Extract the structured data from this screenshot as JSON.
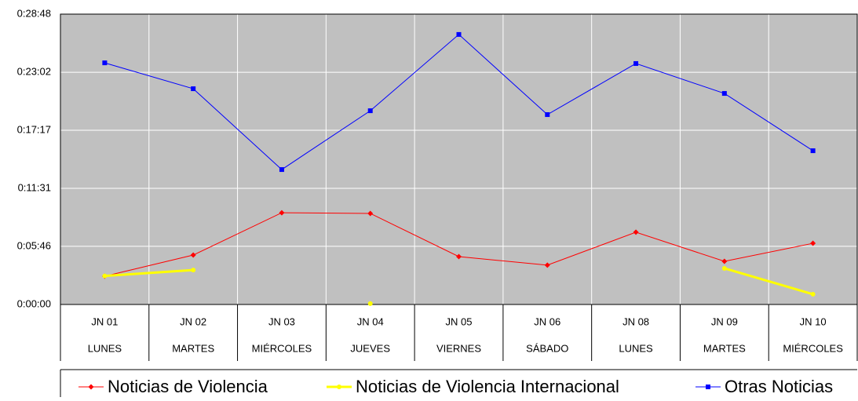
{
  "chart_data": {
    "type": "line",
    "categories": [
      [
        "JN 01",
        "LUNES"
      ],
      [
        "JN 02",
        "MARTES"
      ],
      [
        "JN 03",
        "MIÉRCOLES"
      ],
      [
        "JN 04",
        "JUEVES"
      ],
      [
        "JN 05",
        "VIERNES"
      ],
      [
        "JN 06",
        "SÁBADO"
      ],
      [
        "JN 08",
        "LUNES"
      ],
      [
        "JN 09",
        "MARTES"
      ],
      [
        "JN 10",
        "MIÉRCOLES"
      ]
    ],
    "series": [
      {
        "name": "Noticias de Violencia",
        "color": "#ff0000",
        "marker": "diamond",
        "values": [
          168,
          294,
          546,
          542,
          285,
          234,
          430,
          257,
          364
        ]
      },
      {
        "name": "Noticias de Violencia Internacional",
        "color": "#ffff00",
        "marker": "circle",
        "values": [
          170,
          205,
          null,
          5,
          null,
          null,
          null,
          215,
          61
        ]
      },
      {
        "name": "Otras Noticias",
        "color": "#0000ff",
        "marker": "square",
        "values": [
          1438,
          1284,
          803,
          1153,
          1607,
          1130,
          1434,
          1256,
          915
        ]
      }
    ],
    "ylim": [
      0,
      1728
    ],
    "yticks": [
      {
        "value": 0,
        "label": "0:00:00"
      },
      {
        "value": 346,
        "label": "0:05:46"
      },
      {
        "value": 691,
        "label": "0:11:31"
      },
      {
        "value": 1037,
        "label": "0:17:17"
      },
      {
        "value": 1382,
        "label": "0:23:02"
      },
      {
        "value": 1728,
        "label": "0:28:48"
      }
    ],
    "grid": true,
    "legend": "bottom"
  }
}
